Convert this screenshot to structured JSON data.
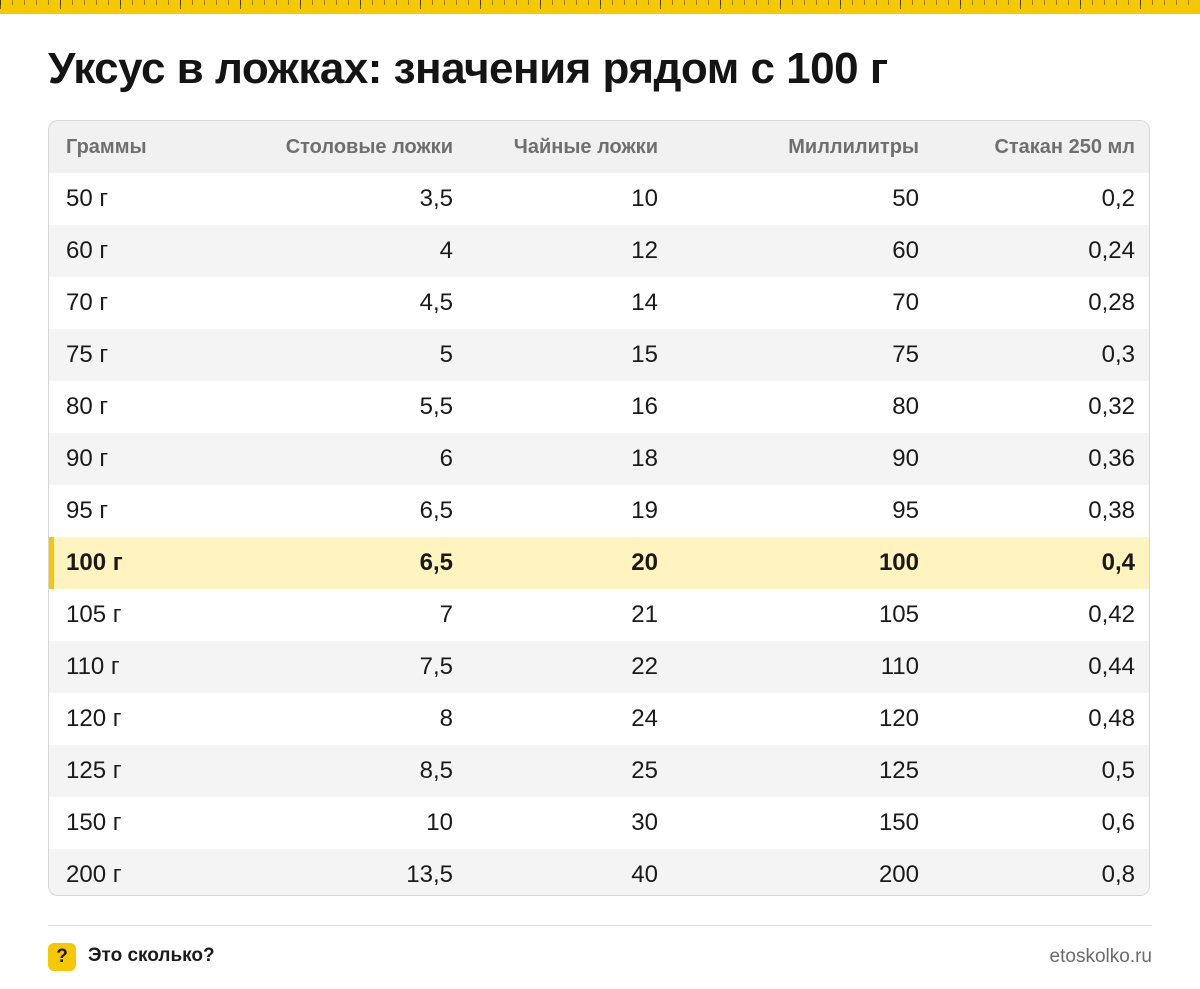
{
  "title": "Уксус в ложках: значения рядом с 100 г",
  "accent_color": "#f5c800",
  "highlight_color": "#fff3c0",
  "table": {
    "headers": [
      "Граммы",
      "Столовые ложки",
      "Чайные ложки",
      "Миллилитры",
      "Стакан 250 мл"
    ],
    "highlight_row": 7,
    "rows": [
      [
        "50 г",
        "3,5",
        "10",
        "50",
        "0,2"
      ],
      [
        "60 г",
        "4",
        "12",
        "60",
        "0,24"
      ],
      [
        "70 г",
        "4,5",
        "14",
        "70",
        "0,28"
      ],
      [
        "75 г",
        "5",
        "15",
        "75",
        "0,3"
      ],
      [
        "80 г",
        "5,5",
        "16",
        "80",
        "0,32"
      ],
      [
        "90 г",
        "6",
        "18",
        "90",
        "0,36"
      ],
      [
        "95 г",
        "6,5",
        "19",
        "95",
        "0,38"
      ],
      [
        "100 г",
        "6,5",
        "20",
        "100",
        "0,4"
      ],
      [
        "105 г",
        "7",
        "21",
        "105",
        "0,42"
      ],
      [
        "110 г",
        "7,5",
        "22",
        "110",
        "0,44"
      ],
      [
        "120 г",
        "8",
        "24",
        "120",
        "0,48"
      ],
      [
        "125 г",
        "8,5",
        "25",
        "125",
        "0,5"
      ],
      [
        "150 г",
        "10",
        "30",
        "150",
        "0,6"
      ],
      [
        "200 г",
        "13,5",
        "40",
        "200",
        "0,8"
      ]
    ]
  },
  "footer": {
    "badge_icon": "question-mark-icon",
    "badge_glyph": "?",
    "brand": "Это сколько?",
    "site": "etoskolko.ru"
  }
}
